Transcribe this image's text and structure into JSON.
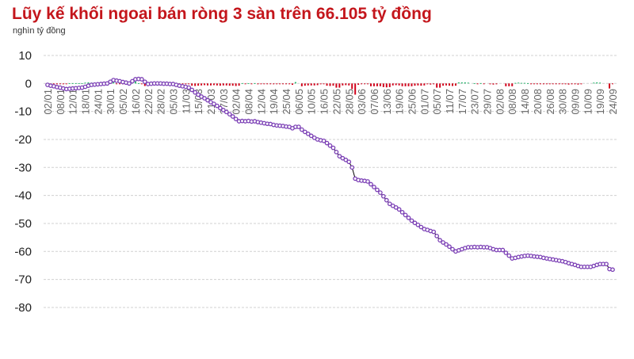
{
  "chart_data": {
    "type": "line",
    "title": "Lũy kế khối ngoại bán ròng 3 sàn trên 66.105 tỷ đồng",
    "subtitle": "nghìn tỷ đồng",
    "ylim": [
      -80,
      10
    ],
    "yticks": [
      10,
      0,
      -10,
      -20,
      -30,
      -40,
      -50,
      -60,
      -70,
      -80
    ],
    "grid": true,
    "x_tick_labels": [
      "02/01",
      "08/01",
      "12/01",
      "18/01",
      "24/01",
      "30/01",
      "05/02",
      "16/02",
      "22/02",
      "28/02",
      "05/03",
      "11/03",
      "15/03",
      "21/03",
      "27/03",
      "02/04",
      "08/04",
      "12/04",
      "19/04",
      "25/04",
      "06/05",
      "10/05",
      "16/05",
      "22/05",
      "28/05",
      "03/06",
      "07/06",
      "13/06",
      "19/06",
      "25/06",
      "01/07",
      "05/07",
      "11/07",
      "17/07",
      "23/07",
      "29/07",
      "02/08",
      "08/08",
      "14/08",
      "20/08",
      "26/08",
      "30/08",
      "09/09",
      "10/09",
      "19/09",
      "24/09"
    ],
    "colors": {
      "line": "#000000",
      "marker": "#7b3fb5",
      "bar_negative": "#d0021b",
      "bar_positive": "#2eb872",
      "title": "#c4161c"
    },
    "series": [
      {
        "values": [
          -0.5,
          -0.8,
          -1.0,
          -1.3,
          -1.5,
          -1.8,
          -2.0,
          -1.9,
          -1.8,
          -1.7,
          -1.6,
          -1.5,
          -1.2,
          -0.8,
          -0.5,
          -0.4,
          -0.3,
          -0.2,
          -0.1,
          0.0,
          0.6,
          1.2,
          1.0,
          0.8,
          0.5,
          0.3,
          0.0,
          0.8,
          1.5,
          1.6,
          1.5,
          0.6,
          -0.2,
          -0.1,
          0.0,
          0.0,
          0.0,
          -0.1,
          -0.1,
          -0.2,
          -0.2,
          -0.5,
          -0.8,
          -1.0,
          -1.2,
          -1.5,
          -2.3,
          -3.2,
          -4.0,
          -4.7,
          -5.3,
          -6.0,
          -6.7,
          -7.3,
          -8.0,
          -8.8,
          -9.5,
          -10.2,
          -11.0,
          -11.8,
          -12.7,
          -13.5,
          -13.4,
          -13.5,
          -13.4,
          -13.6,
          -13.5,
          -13.8,
          -14.0,
          -14.2,
          -14.4,
          -14.5,
          -14.8,
          -15.0,
          -15.1,
          -15.2,
          -15.4,
          -15.5,
          -16.0,
          -15.5,
          -15.5,
          -16.5,
          -17.3,
          -18.0,
          -18.7,
          -19.4,
          -20.0,
          -20.3,
          -20.5,
          -21.3,
          -22.2,
          -23.0,
          -24.5,
          -26.0,
          -26.7,
          -27.3,
          -28.0,
          -30.0,
          -34.0,
          -34.5,
          -34.7,
          -34.8,
          -35.0,
          -36.0,
          -37.0,
          -38.0,
          -39.0,
          -40.3,
          -41.7,
          -43.0,
          -43.7,
          -44.3,
          -45.0,
          -46.0,
          -47.0,
          -48.0,
          -49.0,
          -49.8,
          -50.5,
          -51.3,
          -52.0,
          -52.3,
          -52.7,
          -53.0,
          -54.5,
          -56.0,
          -56.8,
          -57.5,
          -58.3,
          -59.2,
          -60.0,
          -59.6,
          -59.2,
          -58.8,
          -58.5,
          -58.5,
          -58.4,
          -58.5,
          -58.4,
          -58.5,
          -58.5,
          -58.8,
          -59.2,
          -59.5,
          -59.5,
          -59.5,
          -60.5,
          -61.5,
          -62.5,
          -62.3,
          -62.0,
          -61.8,
          -61.6,
          -61.5,
          -61.6,
          -61.8,
          -61.9,
          -62.0,
          -62.3,
          -62.5,
          -62.7,
          -62.9,
          -63.1,
          -63.3,
          -63.5,
          -63.8,
          -64.2,
          -64.5,
          -64.8,
          -65.2,
          -65.5,
          -65.5,
          -65.5,
          -65.5,
          -65.2,
          -64.8,
          -64.5,
          -64.5,
          -64.5,
          -66.3,
          -66.5
        ]
      }
    ]
  }
}
